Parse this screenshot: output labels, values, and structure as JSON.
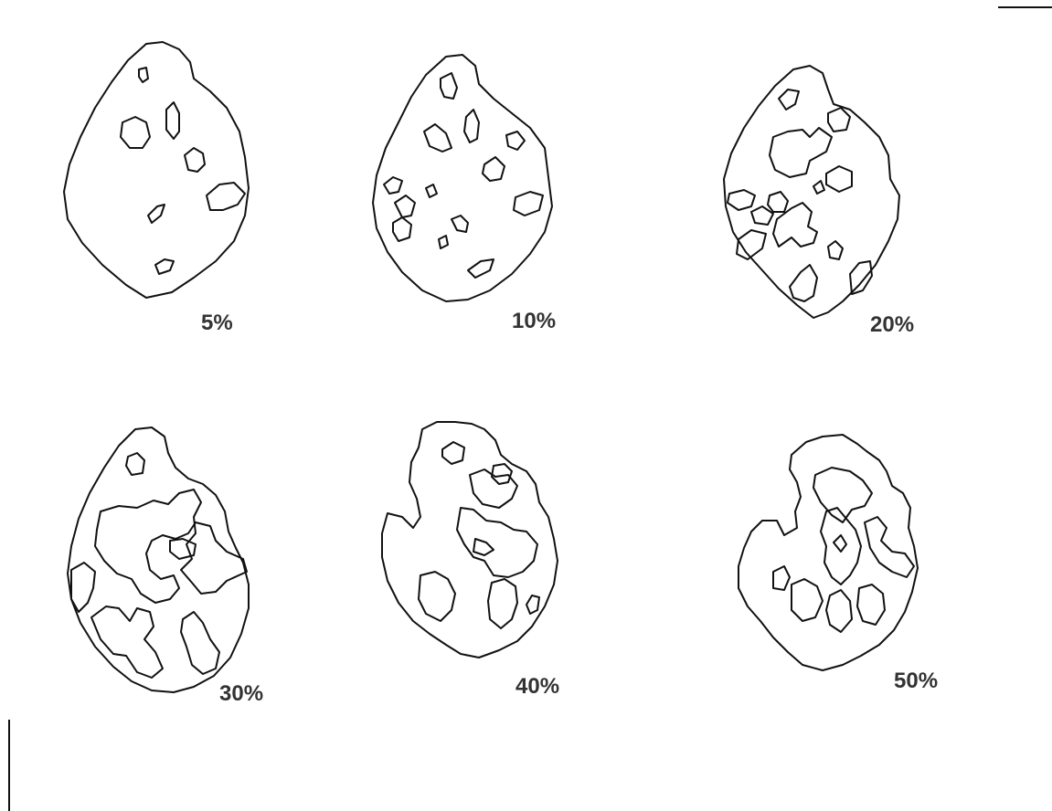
{
  "diagram": {
    "title": "",
    "line_color": "#111111",
    "label_color": "#333333",
    "panels": [
      {
        "label": "5%",
        "severity_percent": 5
      },
      {
        "label": "10%",
        "severity_percent": 10
      },
      {
        "label": "20%",
        "severity_percent": 20
      },
      {
        "label": "30%",
        "severity_percent": 30
      },
      {
        "label": "40%",
        "severity_percent": 40
      },
      {
        "label": "50%",
        "severity_percent": 50
      }
    ]
  }
}
